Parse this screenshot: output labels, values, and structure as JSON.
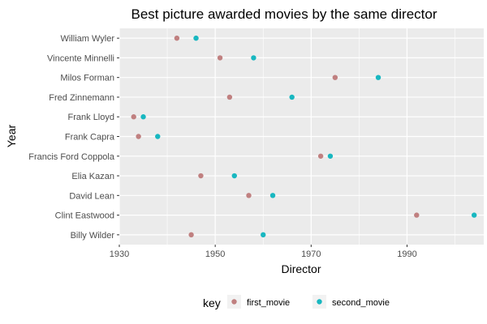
{
  "chart_data": {
    "type": "scatter",
    "title": "Best picture awarded movies by the same director",
    "xlabel": "Director",
    "ylabel": "Year",
    "xlim": [
      1930,
      2006
    ],
    "x_ticks": [
      1930,
      1950,
      1970,
      1990
    ],
    "categories": [
      "William Wyler",
      "Vincente Minnelli",
      "Milos Forman",
      "Fred Zinnemann",
      "Frank Lloyd",
      "Frank Capra",
      "Francis Ford Coppola",
      "Elia Kazan",
      "David Lean",
      "Clint Eastwood",
      "Billy Wilder"
    ],
    "series": [
      {
        "name": "first_movie",
        "color": "#c08080",
        "values": [
          1942,
          1951,
          1975,
          1953,
          1933,
          1934,
          1972,
          1947,
          1957,
          1992,
          1945
        ]
      },
      {
        "name": "second_movie",
        "color": "#18b7c0",
        "values": [
          1946,
          1958,
          1984,
          1966,
          1935,
          1938,
          1974,
          1954,
          1962,
          2004,
          1960
        ]
      }
    ],
    "grid": true,
    "panel_background": "#ebebeb",
    "legend": {
      "title": "key",
      "position": "bottom"
    }
  }
}
